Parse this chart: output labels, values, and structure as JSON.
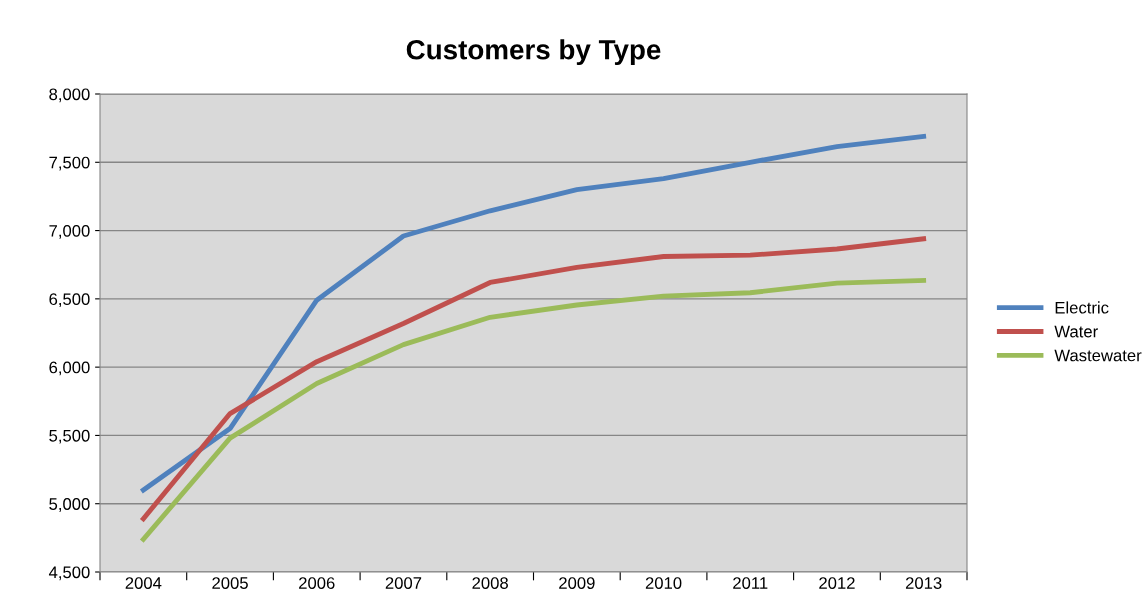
{
  "chart_data": {
    "type": "line",
    "title": "Customers by Type",
    "categories": [
      "2004",
      "2005",
      "2006",
      "2007",
      "2008",
      "2009",
      "2010",
      "2011",
      "2012",
      "2013"
    ],
    "series": [
      {
        "name": "Electric",
        "color": "#4f81bd",
        "values": [
          5100,
          5550,
          6490,
          6960,
          7145,
          7300,
          7380,
          7500,
          7615,
          7690
        ]
      },
      {
        "name": "Water",
        "color": "#c0504d",
        "values": [
          4890,
          5660,
          6040,
          6320,
          6620,
          6730,
          6810,
          6820,
          6865,
          6940
        ]
      },
      {
        "name": "Wastewater",
        "color": "#9bbb59",
        "values": [
          4740,
          5480,
          5880,
          6165,
          6365,
          6455,
          6520,
          6545,
          6615,
          6635
        ]
      }
    ],
    "ylim": [
      4500,
      8000
    ],
    "yticks": [
      {
        "value": 4500,
        "label": "4,500"
      },
      {
        "value": 5000,
        "label": "5,000"
      },
      {
        "value": 5500,
        "label": "5,500"
      },
      {
        "value": 6000,
        "label": "6,000"
      },
      {
        "value": 6500,
        "label": "6,500"
      },
      {
        "value": 7000,
        "label": "7,000"
      },
      {
        "value": 7500,
        "label": "7,500"
      },
      {
        "value": 8000,
        "label": "8,000"
      }
    ],
    "grid": "y",
    "legend": "right",
    "marker": "none",
    "line_style": "solid"
  }
}
